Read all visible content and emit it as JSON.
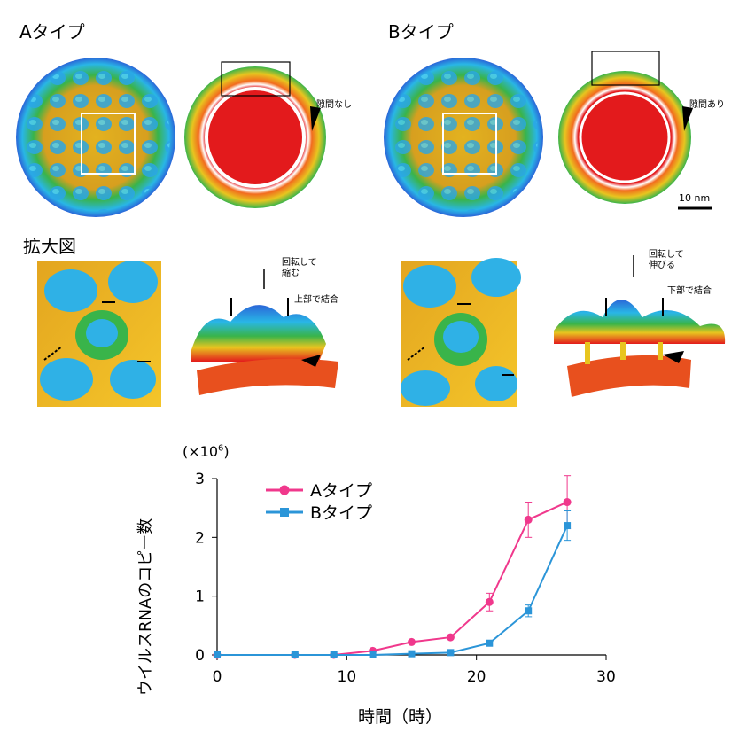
{
  "panels": {
    "type_a_title": "Aタイプ",
    "type_b_title": "Bタイプ",
    "gap_none": "隙間なし",
    "gap_present": "隙間あり",
    "scale_bar": "10 nm",
    "zoom_title": "拡大図",
    "a_rotate": "回転して\n縮む",
    "a_bind": "上部で結合",
    "b_rotate": "回転して\n伸びる",
    "b_bind": "下部で結合",
    "colors": {
      "red": "#e31a1c",
      "orange": "#f28a1e",
      "yellow": "#e8c51f",
      "green": "#33b34a",
      "cyan": "#28b8e6",
      "blue": "#2a66d8"
    }
  },
  "chart_data": {
    "type": "line",
    "ylabel": "ウイルスRNAのコピー数",
    "yunit": "(×10",
    "yunit_exp": "6",
    "yunit_close": ")",
    "xlabel": "時間（時）",
    "xlim": [
      0,
      30
    ],
    "ylim": [
      0,
      3
    ],
    "xticks": [
      "0",
      "10",
      "20",
      "30"
    ],
    "yticks": [
      "0",
      "1",
      "2",
      "3"
    ],
    "x": [
      0,
      6,
      9,
      12,
      15,
      18,
      21,
      24,
      27
    ],
    "series": [
      {
        "name": "Aタイプ",
        "color": "#f0388c",
        "marker": "circle",
        "values": [
          0,
          0,
          0,
          0.07,
          0.22,
          0.3,
          0.9,
          2.3,
          2.6
        ],
        "errors": [
          0,
          0,
          0,
          0,
          0,
          0,
          0.15,
          0.3,
          0.45
        ]
      },
      {
        "name": "Bタイプ",
        "color": "#2b95d8",
        "marker": "square",
        "values": [
          0,
          0,
          0,
          0,
          0.02,
          0.04,
          0.2,
          0.75,
          2.2
        ],
        "errors": [
          0,
          0,
          0,
          0,
          0,
          0,
          0,
          0.1,
          0.25
        ]
      }
    ],
    "legend_position": "top-left"
  }
}
